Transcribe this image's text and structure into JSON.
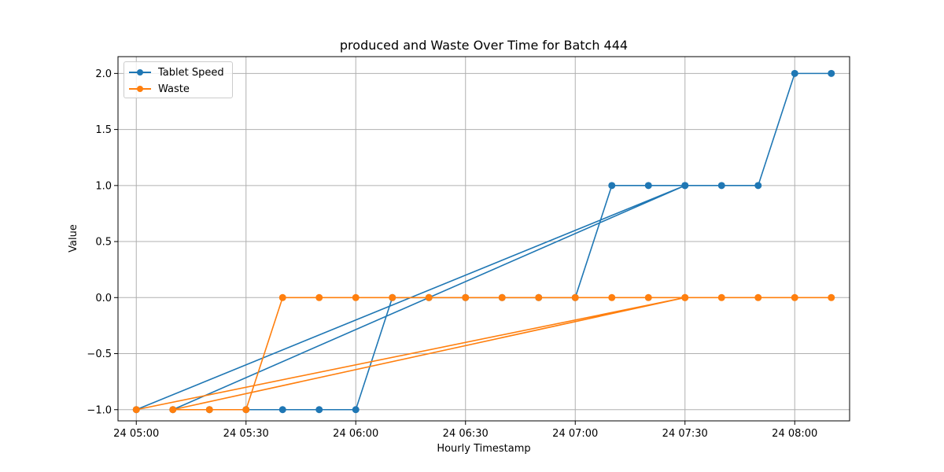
{
  "chart_data": {
    "type": "line",
    "title": "produced and Waste Over Time for Batch 444",
    "xlabel": "Hourly Timestamp",
    "ylabel": "Value",
    "x_ticks": [
      "24 05:00",
      "24 05:30",
      "24 06:00",
      "24 06:30",
      "24 07:00",
      "24 07:30",
      "24 08:00"
    ],
    "y_ticks": [
      "2.0",
      "1.5",
      "1.0",
      "0.5",
      "0.0",
      "−0.5",
      "−1.0"
    ],
    "ylim": [
      -1.1,
      2.15
    ],
    "xlim": [
      "24 04:55",
      "24 08:15"
    ],
    "grid": true,
    "legend_position": "top-left",
    "series": [
      {
        "name": "Tablet Speed",
        "color": "#1f77b4",
        "points": [
          [
            "24 05:00",
            -1
          ],
          [
            "24 07:30",
            1
          ],
          [
            "24 05:10",
            -1
          ],
          [
            "24 05:20",
            -1
          ],
          [
            "24 05:30",
            -1
          ],
          [
            "24 05:40",
            -1
          ],
          [
            "24 05:50",
            -1
          ],
          [
            "24 06:00",
            -1
          ],
          [
            "24 06:10",
            0
          ],
          [
            "24 06:20",
            0
          ],
          [
            "24 06:30",
            0
          ],
          [
            "24 06:40",
            0
          ],
          [
            "24 06:50",
            0
          ],
          [
            "24 07:00",
            0
          ],
          [
            "24 07:10",
            1
          ],
          [
            "24 07:20",
            1
          ],
          [
            "24 07:30",
            1
          ],
          [
            "24 07:40",
            1
          ],
          [
            "24 07:50",
            1
          ],
          [
            "24 08:00",
            2
          ],
          [
            "24 08:10",
            2
          ]
        ]
      },
      {
        "name": "Waste",
        "color": "#ff7f0e",
        "points": [
          [
            "24 05:00",
            -1
          ],
          [
            "24 07:30",
            0
          ],
          [
            "24 05:10",
            -1
          ],
          [
            "24 05:20",
            -1
          ],
          [
            "24 05:30",
            -1
          ],
          [
            "24 05:40",
            0
          ],
          [
            "24 05:50",
            0
          ],
          [
            "24 06:00",
            0
          ],
          [
            "24 06:10",
            0
          ],
          [
            "24 06:20",
            0
          ],
          [
            "24 06:30",
            0
          ],
          [
            "24 06:40",
            0
          ],
          [
            "24 06:50",
            0
          ],
          [
            "24 07:00",
            0
          ],
          [
            "24 07:10",
            0
          ],
          [
            "24 07:20",
            0
          ],
          [
            "24 07:30",
            0
          ],
          [
            "24 07:40",
            0
          ],
          [
            "24 07:50",
            0
          ],
          [
            "24 08:00",
            0
          ],
          [
            "24 08:10",
            0
          ]
        ]
      }
    ]
  }
}
